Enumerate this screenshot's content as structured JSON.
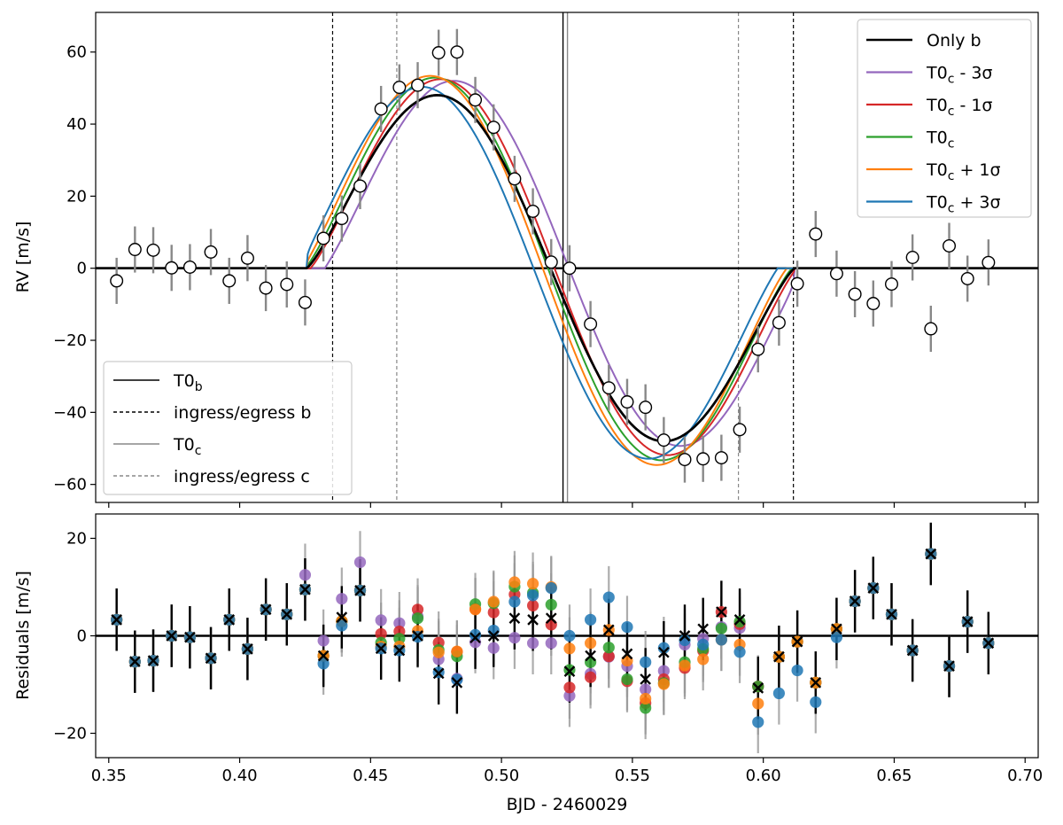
{
  "chart_data": [
    {
      "type": "line",
      "panel": "top",
      "ylabel": "RV [m/s]",
      "xlim": [
        0.345,
        0.705
      ],
      "ylim": [
        -65,
        71
      ],
      "yticks": [
        60,
        40,
        20,
        0,
        -20,
        -40,
        -60
      ],
      "ytick_labels": [
        "60",
        "40",
        "20",
        "0",
        "−20",
        "−40",
        "−60"
      ],
      "vlines": [
        {
          "name": "T0b",
          "x": 0.5235,
          "color": "#000000",
          "style": "solid"
        },
        {
          "name": "T0c",
          "x": 0.5252,
          "color": "#888888",
          "style": "solid"
        },
        {
          "name": "ingress-b",
          "x": 0.4355,
          "color": "#000000",
          "style": "dashed"
        },
        {
          "name": "egress-b",
          "x": 0.6115,
          "color": "#000000",
          "style": "dashed"
        },
        {
          "name": "ingress-c",
          "x": 0.46,
          "color": "#888888",
          "style": "dashed"
        },
        {
          "name": "egress-c",
          "x": 0.5905,
          "color": "#888888",
          "style": "dashed"
        }
      ],
      "rv_points": {
        "x": [
          0.353,
          0.36,
          0.367,
          0.374,
          0.381,
          0.389,
          0.396,
          0.403,
          0.41,
          0.418,
          0.425,
          0.432,
          0.439,
          0.446,
          0.454,
          0.461,
          0.468,
          0.476,
          0.483,
          0.49,
          0.497,
          0.505,
          0.512,
          0.519,
          0.526,
          0.534,
          0.541,
          0.548,
          0.555,
          0.562,
          0.57,
          0.577,
          0.584,
          0.591,
          0.598,
          0.606,
          0.613,
          0.62,
          0.628,
          0.635,
          0.642,
          0.649,
          0.657,
          0.664,
          0.671,
          0.678,
          0.686
        ],
        "y": [
          -3.5,
          5.2,
          5.0,
          0.1,
          0.3,
          4.5,
          -3.5,
          2.8,
          -5.5,
          -4.5,
          -9.5,
          8.3,
          13.8,
          22.8,
          44.2,
          50.2,
          50.8,
          59.8,
          60.0,
          46.7,
          39.1,
          24.8,
          15.8,
          1.7,
          0.0,
          -15.5,
          -33.2,
          -37.1,
          -38.6,
          -47.7,
          -53.1,
          -52.9,
          -52.6,
          -44.8,
          -22.5,
          -15.1,
          -4.3,
          9.5,
          -1.5,
          -7.2,
          -9.8,
          -4.4,
          3.0,
          -16.8,
          6.2,
          -2.9,
          1.6
        ],
        "err": 6.4
      },
      "series": [
        {
          "name": "Only b",
          "color": "#000000",
          "shift": 0.0,
          "amp": 52.0,
          "offset": 0.0,
          "width": 2.6
        },
        {
          "name": "T0c - 3σ",
          "color": "#9467bd",
          "shift": -0.007,
          "amp": 55.0,
          "offset": 0.0,
          "width": 2.0
        },
        {
          "name": "T0c - 1σ",
          "color": "#d62728",
          "shift": -0.0015,
          "amp": 56.5,
          "offset": 0.0,
          "width": 2.0
        },
        {
          "name": "T0c",
          "color": "#2ca02c",
          "shift": 0.001,
          "amp": 57.5,
          "offset": 0.0,
          "width": 2.0
        },
        {
          "name": "T0c + 1σ",
          "color": "#ff7f0e",
          "shift": 0.003,
          "amp": 58.5,
          "offset": 0.0,
          "width": 2.0
        },
        {
          "name": "T0c + 3σ",
          "color": "#1f77b4",
          "shift": 0.0065,
          "amp": 56.0,
          "offset": 0.0,
          "width": 2.0
        }
      ],
      "legend_models": {
        "position": "top-right",
        "entries": [
          {
            "label": "Only b",
            "sub": "",
            "suffix": "",
            "color": "#000000"
          },
          {
            "label": "T0",
            "sub": "c",
            "suffix": " - 3σ",
            "color": "#9467bd"
          },
          {
            "label": "T0",
            "sub": "c",
            "suffix": " - 1σ",
            "color": "#d62728"
          },
          {
            "label": "T0",
            "sub": "c",
            "suffix": "",
            "color": "#2ca02c"
          },
          {
            "label": "T0",
            "sub": "c",
            "suffix": " + 1σ",
            "color": "#ff7f0e"
          },
          {
            "label": "T0",
            "sub": "c",
            "suffix": " + 3σ",
            "color": "#1f77b4"
          }
        ]
      },
      "legend_lines": {
        "position": "bottom-left",
        "entries": [
          {
            "label": "T0",
            "sub": "b",
            "suffix": "",
            "color": "#000000",
            "style": "solid"
          },
          {
            "label": "ingress/egress b",
            "sub": "",
            "suffix": "",
            "color": "#000000",
            "style": "dashed"
          },
          {
            "label": "T0",
            "sub": "c",
            "suffix": "",
            "color": "#888888",
            "style": "solid"
          },
          {
            "label": "ingress/egress c",
            "sub": "",
            "suffix": "",
            "color": "#888888",
            "style": "dashed"
          }
        ]
      }
    },
    {
      "type": "scatter",
      "panel": "bottom",
      "xlabel": "BJD - 2460029",
      "ylabel": "Residuals [m/s]",
      "xlim": [
        0.345,
        0.705
      ],
      "ylim": [
        -25,
        25
      ],
      "xticks": [
        0.35,
        0.4,
        0.45,
        0.5,
        0.55,
        0.6,
        0.65,
        0.7
      ],
      "xtick_labels": [
        "0.35",
        "0.40",
        "0.45",
        "0.50",
        "0.55",
        "0.60",
        "0.65",
        "0.70"
      ],
      "yticks": [
        20,
        0,
        -20
      ],
      "ytick_labels": [
        "20",
        "0",
        "−20"
      ],
      "marker_colors": [
        "#9467bd",
        "#d62728",
        "#2ca02c",
        "#ff7f0e",
        "#1f77b4"
      ],
      "x": [
        0.353,
        0.36,
        0.367,
        0.374,
        0.381,
        0.389,
        0.396,
        0.403,
        0.41,
        0.418,
        0.425,
        0.432,
        0.439,
        0.446,
        0.454,
        0.461,
        0.468,
        0.476,
        0.483,
        0.49,
        0.497,
        0.505,
        0.512,
        0.519,
        0.526,
        0.534,
        0.541,
        0.548,
        0.555,
        0.562,
        0.57,
        0.577,
        0.584,
        0.591,
        0.598,
        0.606,
        0.613,
        0.62,
        0.628,
        0.635,
        0.642,
        0.649,
        0.657,
        0.664,
        0.671,
        0.678,
        0.686
      ],
      "only_b": [
        3.3,
        -5.3,
        -5.1,
        0.0,
        -0.3,
        -4.6,
        3.3,
        -2.7,
        5.4,
        4.4,
        9.5,
        -4.1,
        3.8,
        9.3,
        -2.6,
        -3.0,
        0.0,
        -7.7,
        -9.6,
        -0.4,
        0.0,
        3.6,
        3.3,
        3.6,
        -7.3,
        -4.1,
        1.2,
        -3.7,
        -8.9,
        -3.4,
        0.0,
        1.4,
        4.9,
        3.3,
        -10.7,
        -4.3,
        -1.2,
        -9.6,
        1.4,
        7.1,
        9.8,
        4.4,
        -3.0,
        16.8,
        -6.2,
        2.9,
        -1.5
      ],
      "models": [
        [
          3.3,
          -5.3,
          -5.1,
          0.0,
          -0.3,
          -4.6,
          3.3,
          -2.7,
          5.4,
          4.4,
          12.5,
          -1.0,
          7.6,
          15.1,
          3.2,
          2.6,
          4.0,
          -4.8,
          -8.8,
          -1.3,
          -2.5,
          -0.4,
          -1.5,
          -1.5,
          -12.3,
          -7.8,
          -4.3,
          -6.2,
          -11.0,
          -7.2,
          -1.8,
          -0.6,
          1.8,
          1.6,
          -10.4,
          -4.3,
          -1.2,
          -9.6,
          1.4,
          7.1,
          9.8,
          4.4,
          -3.0,
          16.8,
          -6.2,
          2.9,
          -1.5
        ],
        [
          3.3,
          -5.3,
          -5.1,
          0.0,
          -0.3,
          -4.6,
          3.3,
          -2.7,
          5.4,
          4.4,
          9.5,
          -4.1,
          3.0,
          9.3,
          0.4,
          0.9,
          5.4,
          -1.4,
          -3.3,
          5.5,
          4.8,
          8.5,
          6.2,
          2.3,
          -10.6,
          -8.5,
          -4.2,
          -9.3,
          -13.8,
          -8.9,
          -6.6,
          -3.1,
          4.9,
          2.4,
          -10.4,
          -4.3,
          -1.2,
          -9.6,
          1.4,
          7.1,
          9.8,
          4.4,
          -3.0,
          16.8,
          -6.2,
          2.9,
          -1.5
        ],
        [
          3.3,
          -5.3,
          -5.1,
          0.0,
          -0.3,
          -4.6,
          3.3,
          -2.7,
          5.4,
          4.4,
          9.5,
          -4.1,
          3.0,
          9.3,
          -1.4,
          -0.6,
          3.6,
          -2.9,
          -4.2,
          6.5,
          6.7,
          10.1,
          8.8,
          6.4,
          -7.0,
          -5.4,
          -2.4,
          -8.9,
          -14.8,
          -9.7,
          -5.4,
          -2.7,
          1.5,
          2.9,
          -10.4,
          -4.3,
          -1.2,
          -9.6,
          1.4,
          7.1,
          9.8,
          4.4,
          -3.0,
          16.8,
          -6.2,
          2.9,
          -1.5
        ],
        [
          3.3,
          -5.3,
          -5.1,
          0.0,
          -0.3,
          -4.6,
          3.3,
          -2.7,
          5.4,
          4.4,
          9.5,
          -4.1,
          3.0,
          9.3,
          -2.2,
          -2.2,
          1.0,
          -3.4,
          -3.2,
          5.4,
          7.0,
          11.0,
          10.7,
          10.0,
          -2.6,
          -1.5,
          1.2,
          -5.1,
          -12.9,
          -9.9,
          -6.1,
          -4.8,
          -0.8,
          -1.8,
          -13.9,
          -4.3,
          -1.2,
          -9.6,
          1.4,
          7.1,
          9.8,
          4.4,
          -3.0,
          16.8,
          -6.2,
          2.9,
          -1.5
        ],
        [
          3.3,
          -5.3,
          -5.1,
          0.0,
          -0.3,
          -4.6,
          3.3,
          -2.7,
          5.4,
          4.4,
          9.5,
          -5.7,
          2.1,
          9.3,
          -2.6,
          -3.0,
          -0.2,
          -7.5,
          -9.0,
          0.2,
          1.1,
          7.0,
          8.3,
          9.8,
          0.0,
          3.3,
          7.9,
          1.8,
          -5.4,
          -2.5,
          -0.9,
          -1.8,
          -0.8,
          -3.3,
          -17.7,
          -11.8,
          -7.1,
          -13.6,
          -0.3,
          7.1,
          9.8,
          4.4,
          -3.0,
          16.8,
          -6.2,
          2.9,
          -1.5
        ]
      ],
      "err": 6.4
    }
  ]
}
